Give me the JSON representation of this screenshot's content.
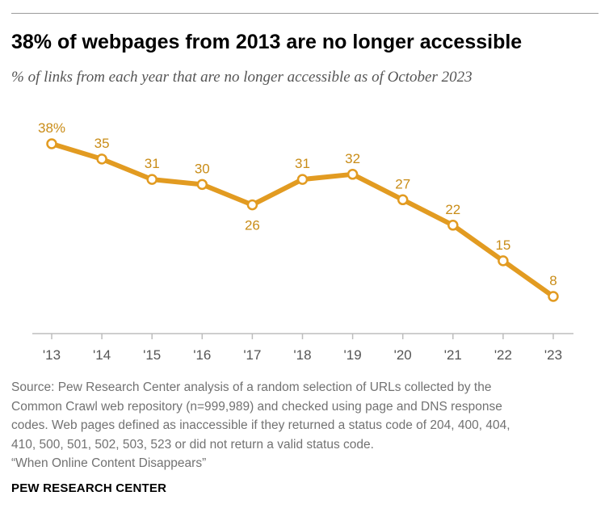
{
  "header": {
    "title": "38% of webpages from 2013 are no longer accessible",
    "subtitle": "% of links from each year that are no longer accessible as of October 2023"
  },
  "colors": {
    "series": "#e29b21",
    "axis": "#bdbdbd",
    "label": "#c98c17"
  },
  "chart_data": {
    "type": "line",
    "title": "38% of webpages from 2013 are no longer accessible",
    "subtitle": "% of links from each year that are no longer accessible as of October 2023",
    "categories": [
      "'13",
      "'14",
      "'15",
      "'16",
      "'17",
      "'18",
      "'19",
      "'20",
      "'21",
      "'22",
      "'23"
    ],
    "series": [
      {
        "values": [
          38,
          35,
          31,
          30,
          26,
          31,
          32,
          27,
          22,
          15,
          8
        ],
        "labels": [
          "38%",
          "35",
          "31",
          "30",
          "26",
          "31",
          "32",
          "27",
          "22",
          "15",
          "8"
        ]
      }
    ],
    "label_placement": [
      "above",
      "above",
      "above",
      "above",
      "below",
      "above",
      "above",
      "above",
      "above",
      "above",
      "above"
    ],
    "markers": "open-circle",
    "grid": false,
    "ylim": [
      0,
      40
    ]
  },
  "footer": {
    "source_lines": [
      "Source: Pew Research Center analysis of a random selection of URLs collected by the",
      "Common Crawl web repository (n=999,989) and checked using page and DNS response",
      "codes. Web pages defined as inaccessible if they returned a status code of 204, 400, 404,",
      "410, 500, 501, 502, 503, 523 or did not return a valid status code.",
      "“When Online Content Disappears”"
    ],
    "org": "PEW RESEARCH CENTER"
  }
}
